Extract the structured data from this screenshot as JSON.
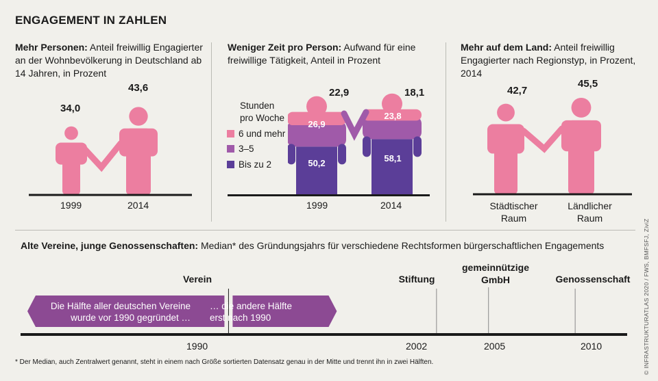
{
  "header": {
    "title": "ENGAGEMENT IN ZAHLEN"
  },
  "panel1": {
    "heading_bold": "Mehr Personen:",
    "heading_rest": " Anteil freiwillig Engagierter an der Wohnbevölkerung in Deutschland ab 14 Jahren, in Prozent",
    "items": [
      {
        "year": "1999",
        "label": "34,0"
      },
      {
        "year": "2014",
        "label": "43,6"
      }
    ]
  },
  "panel2": {
    "heading_bold": "Weniger Zeit pro Person:",
    "heading_rest": " Aufwand für eine freiwillige Tätigkeit, Anteil in Prozent",
    "legend_title": "Stunden pro Woche",
    "legend": [
      "6 und mehr",
      "3–5",
      "Bis zu 2"
    ],
    "items": [
      {
        "year": "1999",
        "top": "22,9",
        "mid": "26,9",
        "bottom": "50,2"
      },
      {
        "year": "2014",
        "top": "18,1",
        "mid": "23,8",
        "bottom": "58,1"
      }
    ]
  },
  "panel3": {
    "heading_bold": "Mehr auf dem Land:",
    "heading_rest": " Anteil freiwillig Engagierter nach Regionstyp, in Prozent, 2014",
    "items": [
      {
        "label": "42,7",
        "name": "Städtischer Raum"
      },
      {
        "label": "45,5",
        "name": "Ländlicher Raum"
      }
    ]
  },
  "timeline": {
    "heading_bold": "Alte Vereine, junge Genossenschaften:",
    "heading_rest": " Median* des Gründungsjahrs für verschiedene Rechtsformen bürgerschaftlichen Engagements",
    "arrow_left": "Die Hälfte aller deutschen Vereine wurde vor 1990 gegründet …",
    "arrow_right": "… die andere Hälfte erst nach 1990",
    "events": [
      {
        "label": "Verein",
        "year": "1990"
      },
      {
        "label": "Stiftung",
        "year": "2002"
      },
      {
        "label": "gemeinnützige GmbH",
        "year": "2005"
      },
      {
        "label": "Genossenschaft",
        "year": "2010"
      }
    ]
  },
  "footnote": "* Der Median, auch Zentralwert genannt, steht in einem nach Größe sortierten Datensatz genau in der Mitte und trennt ihn in zwei Hälften.",
  "credit": "© INFRASTRUKTURATLAS 2020 / FWS, BMFSFJ, ZiviZ",
  "colors": {
    "pink": "#ec7ea0",
    "lavender": "#a05aa9",
    "violet": "#5b3e98",
    "timeline_arrow": "#8c4a93",
    "bg": "#f1f0eb"
  },
  "chart_data": [
    {
      "type": "bar",
      "title": "Mehr Personen",
      "categories": [
        "1999",
        "2014"
      ],
      "values": [
        34.0,
        43.6
      ],
      "ylabel": "Prozent"
    },
    {
      "type": "bar",
      "title": "Weniger Zeit pro Person",
      "categories": [
        "1999",
        "2014"
      ],
      "series": [
        {
          "name": "Bis zu 2",
          "values": [
            50.2,
            58.1
          ]
        },
        {
          "name": "3–5",
          "values": [
            26.9,
            23.8
          ]
        },
        {
          "name": "6 und mehr",
          "values": [
            22.9,
            18.1
          ]
        }
      ],
      "stacked": true,
      "ylim": [
        0,
        100
      ]
    },
    {
      "type": "bar",
      "title": "Mehr auf dem Land",
      "categories": [
        "Städtischer Raum",
        "Ländlicher Raum"
      ],
      "values": [
        42.7,
        45.5
      ]
    },
    {
      "type": "timeline",
      "title": "Median des Gründungsjahrs",
      "categories": [
        "Verein",
        "Stiftung",
        "gemeinnützige GmbH",
        "Genossenschaft"
      ],
      "values": [
        1990,
        2002,
        2005,
        2010
      ],
      "xlim": [
        1978,
        2013
      ]
    }
  ]
}
